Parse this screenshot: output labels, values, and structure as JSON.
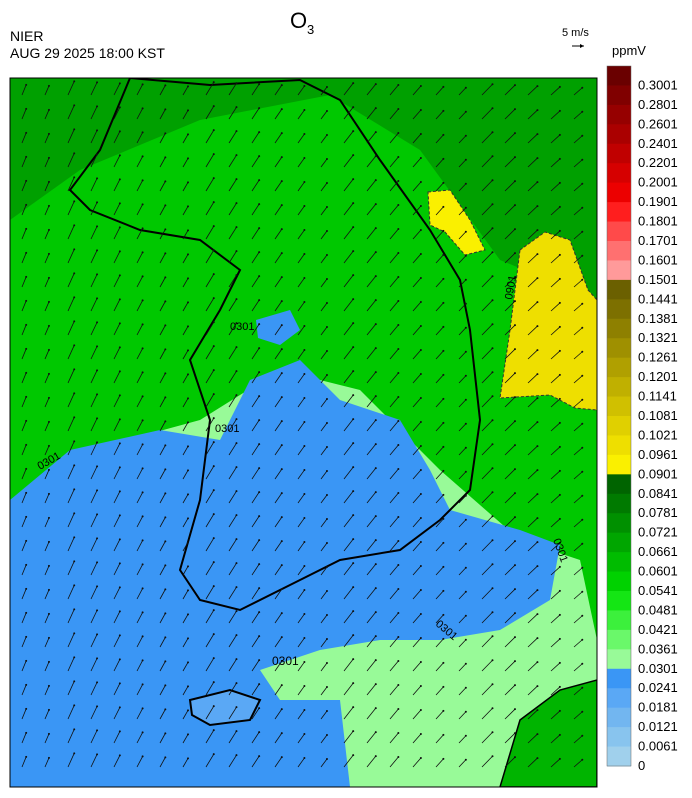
{
  "header": {
    "title": "O",
    "title_subscript": "3",
    "agency": "NIER",
    "datetime": "AUG 29 2025 18:00 KST",
    "wind_scale": "5 m/s"
  },
  "colorbar": {
    "unit": "ppmV",
    "labels": [
      "0.3001",
      "0.2801",
      "0.2601",
      "0.2401",
      "0.2201",
      "0.2001",
      "0.1901",
      "0.1801",
      "0.1701",
      "0.1601",
      "0.1501",
      "0.1441",
      "0.1381",
      "0.1321",
      "0.1261",
      "0.1201",
      "0.1141",
      "0.1081",
      "0.1021",
      "0.0961",
      "0.0901",
      "0.0841",
      "0.0781",
      "0.0721",
      "0.0661",
      "0.0601",
      "0.0541",
      "0.0481",
      "0.0421",
      "0.0361",
      "0.0301",
      "0.0241",
      "0.0181",
      "0.0121",
      "0.0061",
      "0"
    ],
    "colors": [
      "#6a0000",
      "#800000",
      "#960000",
      "#aa0000",
      "#c00000",
      "#d60000",
      "#ec0000",
      "#ff1e1e",
      "#ff4a4a",
      "#ff7070",
      "#ff9a9a",
      "#6b6000",
      "#7d7000",
      "#8e8000",
      "#9f9000",
      "#b0a000",
      "#c0b000",
      "#d0c000",
      "#e0d000",
      "#eedf00",
      "#faf000",
      "#006400",
      "#007a00",
      "#009000",
      "#00a600",
      "#00bc00",
      "#00d200",
      "#14e614",
      "#3cf03c",
      "#6af86a",
      "#98fa98",
      "#3a96f5",
      "#5aa8f5",
      "#72b6f0",
      "#88c4ee",
      "#a0d0ec"
    ]
  },
  "contour_labels": [
    "0301",
    "0301",
    "0301",
    "0301",
    "0301",
    "0901",
    "0301"
  ]
}
